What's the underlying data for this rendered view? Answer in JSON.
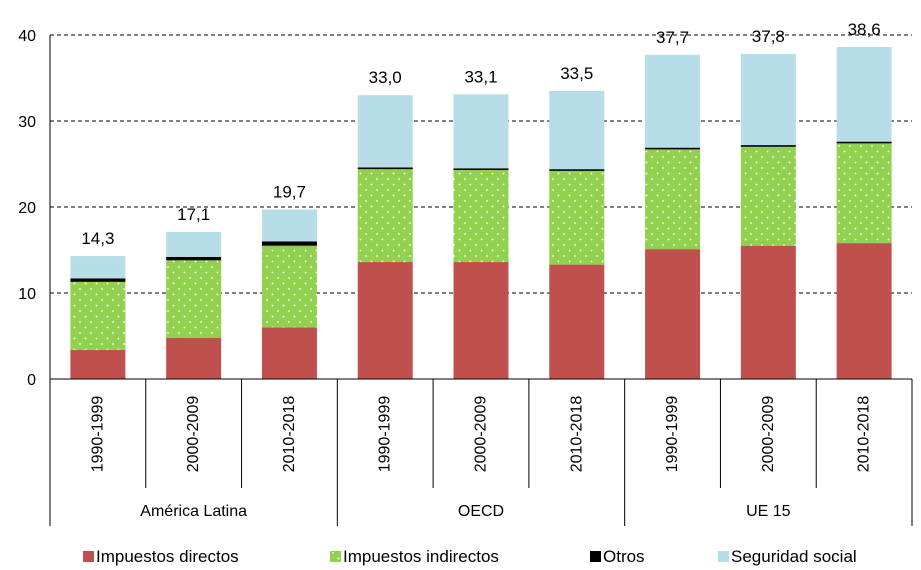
{
  "chart_data": {
    "type": "bar",
    "stacked": true,
    "groups": [
      "América Latina",
      "OECD",
      "UE 15"
    ],
    "categories": [
      "1990-1999",
      "2000-2009",
      "2010-2018",
      "1990-1999",
      "2000-2009",
      "2010-2018",
      "1990-1999",
      "2000-2009",
      "2010-2018"
    ],
    "series": [
      {
        "name": "Impuestos directos",
        "color": "#c0504d",
        "values": [
          3.4,
          4.8,
          6.0,
          13.6,
          13.6,
          13.3,
          15.1,
          15.5,
          15.8
        ]
      },
      {
        "name": "Impuestos indirectos",
        "color": "#92d050",
        "pattern": "dotted",
        "values": [
          7.9,
          9.0,
          9.5,
          10.8,
          10.7,
          10.9,
          11.6,
          11.5,
          11.6
        ]
      },
      {
        "name": "Otros",
        "color": "#000000",
        "values": [
          0.4,
          0.4,
          0.5,
          0.2,
          0.2,
          0.2,
          0.2,
          0.2,
          0.2
        ]
      },
      {
        "name": "Seguridad social",
        "color": "#b7dde8",
        "values": [
          2.6,
          2.9,
          3.7,
          8.4,
          8.6,
          9.1,
          10.8,
          10.6,
          11.0
        ]
      }
    ],
    "totals": [
      "14,3",
      "17,1",
      "19,7",
      "33,0",
      "33,1",
      "33,5",
      "37,7",
      "37,8",
      "38,6"
    ],
    "y_ticks": [
      "0",
      "10",
      "20",
      "30",
      "40"
    ],
    "ylim": [
      0,
      40
    ],
    "grid": "dashed horizontal",
    "legend_position": "bottom"
  }
}
